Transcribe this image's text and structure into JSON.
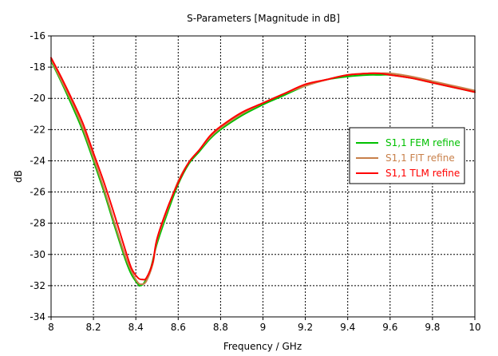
{
  "chart_data": {
    "type": "line",
    "title": "S-Parameters [Magnitude in dB]",
    "xlabel": "Frequency / GHz",
    "ylabel": "dB",
    "xlim": [
      8,
      10
    ],
    "ylim": [
      -34,
      -16
    ],
    "xticks": [
      "8",
      "8.2",
      "8.4",
      "8.6",
      "8.8",
      "9",
      "9.2",
      "9.4",
      "9.6",
      "9.8",
      "10"
    ],
    "yticks": [
      "-16",
      "-18",
      "-20",
      "-22",
      "-24",
      "-26",
      "-28",
      "-30",
      "-32",
      "-34"
    ],
    "grid": true,
    "legend_position": "right",
    "series": [
      {
        "name": "S1,1 FEM refine",
        "color": "#00c000",
        "x": [
          8.0,
          8.05,
          8.1,
          8.15,
          8.2,
          8.25,
          8.3,
          8.35,
          8.38,
          8.41,
          8.42,
          8.44,
          8.47,
          8.5,
          8.55,
          8.6,
          8.65,
          8.7,
          8.75,
          8.8,
          8.9,
          9.0,
          9.1,
          9.2,
          9.3,
          9.4,
          9.5,
          9.55,
          9.6,
          9.7,
          9.8,
          9.9,
          10.0
        ],
        "y": [
          -17.6,
          -19.0,
          -20.5,
          -22.1,
          -24.0,
          -26.0,
          -28.2,
          -30.3,
          -31.3,
          -31.9,
          -32.0,
          -31.8,
          -30.9,
          -29.3,
          -27.3,
          -25.5,
          -24.2,
          -23.4,
          -22.6,
          -22.0,
          -21.1,
          -20.4,
          -19.8,
          -19.2,
          -18.8,
          -18.6,
          -18.5,
          -18.5,
          -18.5,
          -18.7,
          -19.0,
          -19.3,
          -19.6
        ]
      },
      {
        "name": "S1,1 FIT refine",
        "color": "#c8804a",
        "x": [
          8.0,
          8.05,
          8.1,
          8.15,
          8.2,
          8.25,
          8.3,
          8.35,
          8.38,
          8.41,
          8.43,
          8.45,
          8.48,
          8.5,
          8.55,
          8.6,
          8.65,
          8.7,
          8.75,
          8.8,
          8.9,
          9.0,
          9.1,
          9.2,
          9.3,
          9.4,
          9.5,
          9.55,
          9.6,
          9.7,
          9.8,
          9.9,
          10.0
        ],
        "y": [
          -17.5,
          -18.9,
          -20.3,
          -21.9,
          -23.8,
          -25.8,
          -28.0,
          -30.1,
          -31.1,
          -31.8,
          -31.9,
          -31.7,
          -30.6,
          -29.1,
          -27.1,
          -25.3,
          -24.1,
          -23.3,
          -22.5,
          -21.9,
          -21.0,
          -20.3,
          -19.7,
          -19.2,
          -18.8,
          -18.5,
          -18.4,
          -18.4,
          -18.4,
          -18.6,
          -18.9,
          -19.2,
          -19.5
        ]
      },
      {
        "name": "S1,1 TLM refine",
        "color": "#ff0000",
        "x": [
          8.0,
          8.05,
          8.1,
          8.15,
          8.2,
          8.25,
          8.3,
          8.35,
          8.38,
          8.41,
          8.43,
          8.45,
          8.48,
          8.5,
          8.55,
          8.6,
          8.65,
          8.7,
          8.75,
          8.8,
          8.9,
          9.0,
          9.1,
          9.2,
          9.3,
          9.4,
          9.5,
          9.55,
          9.6,
          9.7,
          9.8,
          9.9,
          10.0
        ],
        "y": [
          -17.4,
          -18.7,
          -20.1,
          -21.6,
          -23.5,
          -25.4,
          -27.5,
          -29.7,
          -30.9,
          -31.5,
          -31.6,
          -31.5,
          -30.5,
          -29.0,
          -27.0,
          -25.4,
          -24.1,
          -23.3,
          -22.4,
          -21.8,
          -20.9,
          -20.3,
          -19.7,
          -19.1,
          -18.8,
          -18.5,
          -18.4,
          -18.4,
          -18.5,
          -18.7,
          -19.0,
          -19.3,
          -19.6
        ]
      }
    ]
  }
}
